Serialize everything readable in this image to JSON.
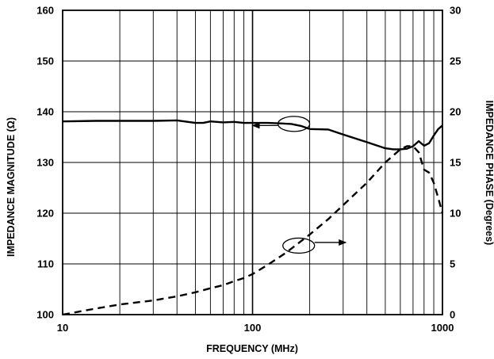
{
  "chart_data": {
    "type": "line",
    "xlabel": "FREQUENCY (MHz)",
    "ylabel_left": "IMPEDANCE MAGNITUDE (Ω)",
    "ylabel_right": "IMPEDANCE PHASE (Degrees)",
    "x_scale": "log",
    "xlim": [
      10,
      1000
    ],
    "ylim_left": [
      100,
      160
    ],
    "ylim_right": [
      0,
      30
    ],
    "grid": true,
    "x_ticks": [
      "10",
      "100",
      "1000"
    ],
    "y_left_ticks": [
      "100",
      "110",
      "120",
      "130",
      "140",
      "150",
      "160"
    ],
    "y_right_ticks": [
      "0",
      "5",
      "10",
      "15",
      "20",
      "25",
      "30"
    ],
    "series": [
      {
        "axis": "left",
        "style": "solid",
        "x": [
          10,
          15,
          20,
          30,
          40,
          50,
          55,
          60,
          70,
          80,
          90,
          100,
          120,
          140,
          160,
          180,
          200,
          250,
          300,
          400,
          500,
          550,
          600,
          650,
          700,
          750,
          800,
          850,
          900,
          950,
          1000
        ],
        "y": [
          138.1,
          138.2,
          138.2,
          138.2,
          138.3,
          137.8,
          137.8,
          138.1,
          137.9,
          138.0,
          137.8,
          137.8,
          137.8,
          137.7,
          137.6,
          137.2,
          136.6,
          136.5,
          135.5,
          134.0,
          132.8,
          132.6,
          132.6,
          132.7,
          133.2,
          134.2,
          133.3,
          133.8,
          135.3,
          136.6,
          137.3
        ]
      },
      {
        "axis": "right",
        "style": "dashed",
        "x": [
          10,
          15,
          20,
          30,
          40,
          50,
          60,
          70,
          80,
          90,
          100,
          120,
          150,
          200,
          250,
          300,
          400,
          500,
          600,
          650,
          700,
          750,
          800,
          850,
          900,
          950,
          1000
        ],
        "y": [
          0.0,
          0.6,
          1.0,
          1.4,
          1.8,
          2.2,
          2.6,
          2.9,
          3.3,
          3.6,
          4.0,
          4.9,
          6.1,
          7.9,
          9.4,
          10.8,
          13.0,
          15.0,
          16.3,
          16.6,
          16.6,
          16.0,
          14.3,
          14.0,
          13.0,
          11.5,
          10.0
        ]
      }
    ]
  }
}
